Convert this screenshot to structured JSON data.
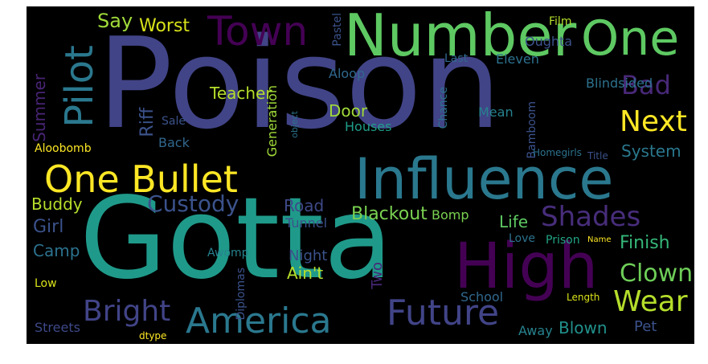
{
  "words": {
    "poison": {
      "text": "Poison",
      "color": "#414487"
    },
    "gotta": {
      "text": "Gotta",
      "color": "#1f9a8a"
    },
    "number": {
      "text": "Number",
      "color": "#5ec962"
    },
    "one_top": {
      "text": "One",
      "color": "#5ec962"
    },
    "influence": {
      "text": "Influence",
      "color": "#2a788e"
    },
    "one_bullet": {
      "text": "One Bullet",
      "color": "#fde725"
    },
    "high": {
      "text": "High",
      "color": "#440154"
    },
    "town": {
      "text": "Town",
      "color": "#440154"
    },
    "america": {
      "text": "America",
      "color": "#2a788e"
    },
    "future": {
      "text": "Future",
      "color": "#414487"
    },
    "pilot": {
      "text": "Pilot",
      "color": "#2a788e"
    },
    "bright": {
      "text": "Bright",
      "color": "#414487"
    },
    "custody": {
      "text": "Custody",
      "color": "#3b528b"
    },
    "shades": {
      "text": "Shades",
      "color": "#472d7b"
    },
    "wear": {
      "text": "Wear",
      "color": "#b5de2b"
    },
    "next": {
      "text": "Next",
      "color": "#fde725"
    },
    "bad": {
      "text": "Bad",
      "color": "#482878"
    },
    "clown": {
      "text": "Clown",
      "color": "#6ece58"
    },
    "finish": {
      "text": "Finish",
      "color": "#35b779"
    },
    "say": {
      "text": "Say",
      "color": "#a0da39"
    },
    "worst": {
      "text": "Worst",
      "color": "#d8e219"
    },
    "teacher": {
      "text": "Teacher",
      "color": "#b5de2b"
    },
    "summer": {
      "text": "Summer",
      "color": "#482475"
    },
    "riff": {
      "text": "Riff",
      "color": "#3b528b"
    },
    "buddy": {
      "text": "Buddy",
      "color": "#b5de2b"
    },
    "girl": {
      "text": "Girl",
      "color": "#3b528b"
    },
    "camp": {
      "text": "Camp",
      "color": "#2c728e"
    },
    "low": {
      "text": "Low",
      "color": "#d8e219"
    },
    "streets": {
      "text": "Streets",
      "color": "#3e4989"
    },
    "aloobomb": {
      "text": "Aloobomb",
      "color": "#fde725"
    },
    "sale": {
      "text": "Sale",
      "color": "#3b528b"
    },
    "back": {
      "text": "Back",
      "color": "#31688e"
    },
    "road": {
      "text": "Road",
      "color": "#3e4989"
    },
    "tunnel": {
      "text": "Tunnel",
      "color": "#3b528b"
    },
    "night": {
      "text": "Night",
      "color": "#3b528b"
    },
    "aint": {
      "text": "Ain't",
      "color": "#b5de2b"
    },
    "awomp": {
      "text": "Awomp",
      "color": "#26828e"
    },
    "diplomas": {
      "text": "Diplomas",
      "color": "#3b528b"
    },
    "two": {
      "text": "Two",
      "color": "#482878"
    },
    "blackout": {
      "text": "Blackout",
      "color": "#7ad151"
    },
    "bomp": {
      "text": "Bomp",
      "color": "#7ad151"
    },
    "life": {
      "text": "Life",
      "color": "#5ec962"
    },
    "love": {
      "text": "Love",
      "color": "#2c728e"
    },
    "prison": {
      "text": "Prison",
      "color": "#21a585"
    },
    "name": {
      "text": "Name",
      "color": "#fde725"
    },
    "away": {
      "text": "Away",
      "color": "#26828e"
    },
    "blown": {
      "text": "Blown",
      "color": "#21918c"
    },
    "pet": {
      "text": "Pet",
      "color": "#3b528b"
    },
    "length": {
      "text": "Length",
      "color": "#d8e219"
    },
    "school": {
      "text": "School",
      "color": "#31688e"
    },
    "dtype": {
      "text": "dtype",
      "color": "#fde725"
    },
    "door": {
      "text": "Door",
      "color": "#a0da39"
    },
    "houses": {
      "text": "Houses",
      "color": "#1f9e89"
    },
    "generation": {
      "text": "Generation",
      "color": "#a0da39"
    },
    "aloop": {
      "text": "Aloop",
      "color": "#31688e"
    },
    "pastel": {
      "text": "Pastel",
      "color": "#3b528b"
    },
    "object": {
      "text": "object",
      "color": "#2c728e"
    },
    "last": {
      "text": "Last",
      "color": "#31688e"
    },
    "eleven": {
      "text": "Eleven",
      "color": "#2c728e"
    },
    "oughta": {
      "text": "Oughta",
      "color": "#3b528b"
    },
    "film": {
      "text": "Film",
      "color": "#b5de2b"
    },
    "blindsided": {
      "text": "Blindsided",
      "color": "#2c728e"
    },
    "chance": {
      "text": "Chance",
      "color": "#2c728e"
    },
    "mean": {
      "text": "Mean",
      "color": "#26828e"
    },
    "bamboom": {
      "text": "Bamboom",
      "color": "#3b528b"
    },
    "system": {
      "text": "System",
      "color": "#2a788e"
    },
    "homegirls": {
      "text": "Homegirls",
      "color": "#2c728e"
    },
    "title": {
      "text": "Title",
      "color": "#3b528b"
    }
  }
}
